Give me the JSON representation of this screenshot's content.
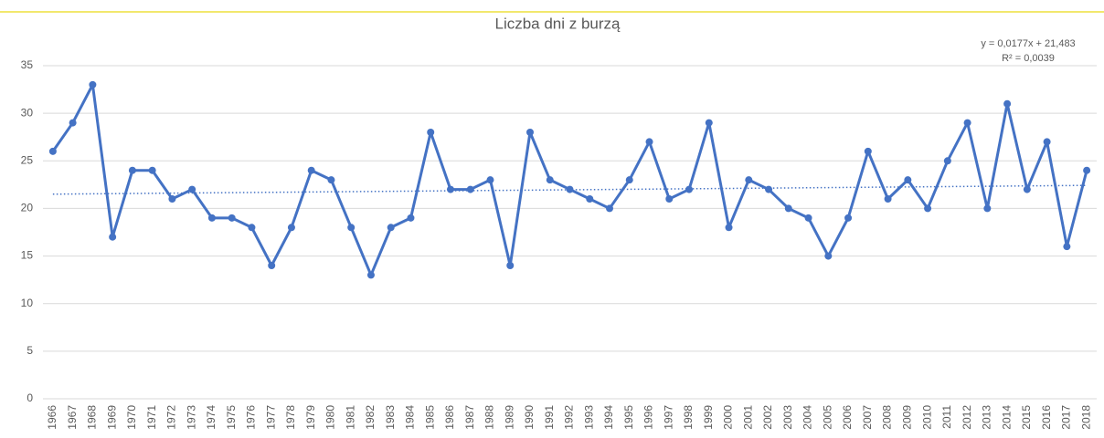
{
  "chart_data": {
    "type": "line",
    "title": "Liczba dni z burzą",
    "categories": [
      "1966",
      "1967",
      "1968",
      "1969",
      "1970",
      "1971",
      "1972",
      "1973",
      "1974",
      "1975",
      "1976",
      "1977",
      "1978",
      "1979",
      "1980",
      "1981",
      "1982",
      "1983",
      "1984",
      "1985",
      "1986",
      "1987",
      "1988",
      "1989",
      "1990",
      "1991",
      "1992",
      "1993",
      "1994",
      "1995",
      "1996",
      "1997",
      "1998",
      "1999",
      "2000",
      "2001",
      "2002",
      "2003",
      "2004",
      "2005",
      "2006",
      "2007",
      "2008",
      "2009",
      "2010",
      "2011",
      "2012",
      "2013",
      "2014",
      "2015",
      "2016",
      "2017",
      "2018"
    ],
    "series": [
      {
        "name": "Liczba dni z burzą",
        "color": "#4472c4",
        "values": [
          26,
          29,
          33,
          17,
          24,
          24,
          21,
          22,
          19,
          19,
          18,
          14,
          18,
          24,
          23,
          18,
          13,
          18,
          19,
          28,
          22,
          22,
          23,
          14,
          28,
          23,
          22,
          21,
          20,
          23,
          27,
          21,
          22,
          29,
          18,
          23,
          22,
          20,
          19,
          15,
          19,
          26,
          21,
          23,
          20,
          25,
          29,
          20,
          31,
          22,
          27,
          16,
          24
        ]
      }
    ],
    "trendline": {
      "slope": 0.0177,
      "intercept": 21.483,
      "color": "#4472c4",
      "equation": "y = 0,0177x + 21,483",
      "r_squared": "R² = 0,0039"
    },
    "ylim": [
      0,
      35
    ],
    "yticks": [
      0,
      5,
      10,
      15,
      20,
      25,
      30,
      35
    ],
    "grid": true
  }
}
